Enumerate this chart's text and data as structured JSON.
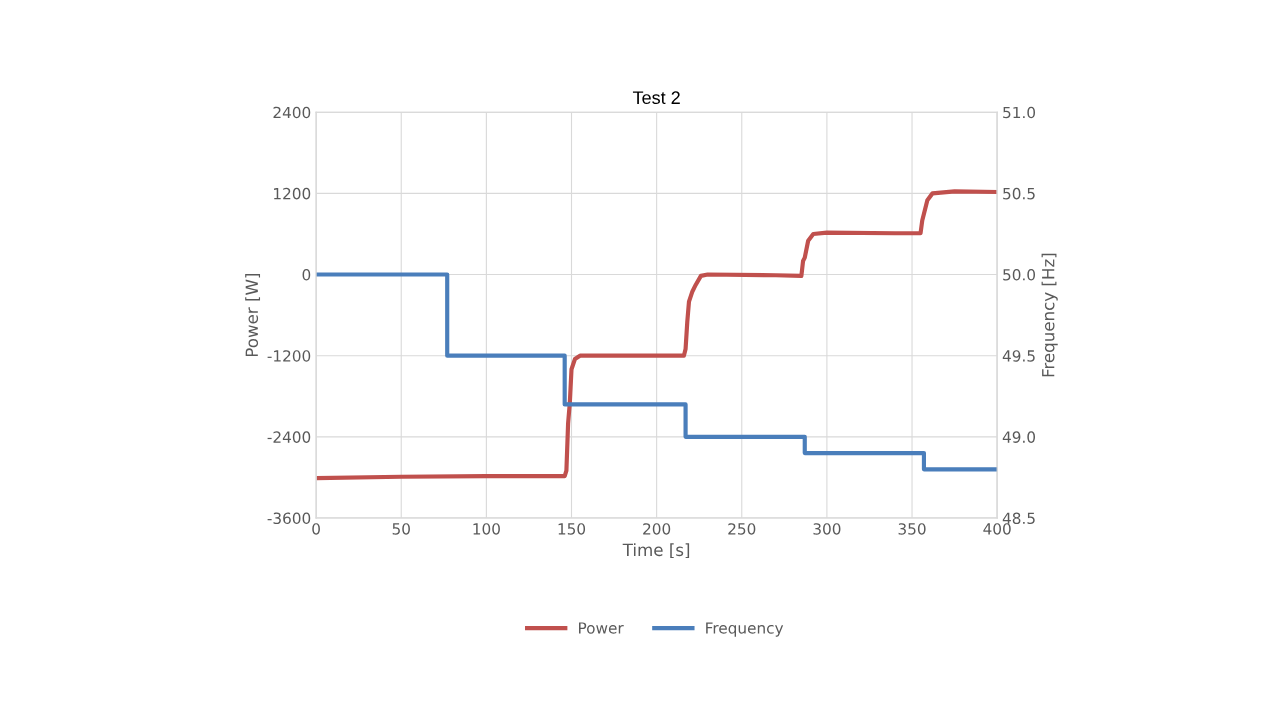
{
  "chart_data": {
    "type": "line",
    "title": "Test 2",
    "xlabel": "Time [s]",
    "ylabel": "Power [W]",
    "y2label": "Frequency [Hz]",
    "xlim": [
      0,
      400
    ],
    "xticks": [
      0,
      50,
      100,
      150,
      200,
      250,
      300,
      350,
      400
    ],
    "ylim": [
      -3600,
      2400
    ],
    "yticks": [
      -3600,
      -2400,
      -1200,
      0,
      1200,
      2400
    ],
    "y2lim": [
      48.5,
      51.0
    ],
    "y2ticks": [
      {
        "value": 48.5,
        "label": "48.5"
      },
      {
        "value": 49.0,
        "label": "49.0"
      },
      {
        "value": 49.5,
        "label": "49.5"
      },
      {
        "value": 50.0,
        "label": "50.0"
      },
      {
        "value": 50.5,
        "label": "50.5"
      },
      {
        "value": 51.0,
        "label": "51.0"
      }
    ],
    "grid": true,
    "legend": "bottom",
    "marker": "none",
    "line_style": "solid",
    "series": [
      {
        "name": "Power",
        "color": "#c0504d",
        "x": [
          0,
          50,
          100,
          146,
          147,
          148,
          149,
          150,
          152,
          155,
          200,
          216,
          217,
          218,
          219,
          221,
          223,
          226,
          230,
          270,
          285,
          286,
          287,
          289,
          292,
          300,
          340,
          355,
          356,
          357,
          359,
          362,
          375,
          400
        ],
        "values": [
          -3010,
          -2990,
          -2980,
          -2980,
          -2900,
          -2200,
          -1900,
          -1400,
          -1250,
          -1200,
          -1200,
          -1200,
          -1100,
          -700,
          -400,
          -250,
          -150,
          -20,
          0,
          -10,
          -20,
          200,
          250,
          500,
          600,
          620,
          610,
          610,
          800,
          900,
          1100,
          1200,
          1230,
          1220
        ]
      },
      {
        "name": "Frequency",
        "color": "#4a7ebb",
        "axis": "y2",
        "x": [
          0,
          77,
          77,
          146,
          146,
          217,
          217,
          287,
          287,
          357,
          357,
          400
        ],
        "values": [
          50.0,
          50.0,
          49.5,
          49.5,
          49.2,
          49.2,
          49.0,
          49.0,
          48.9,
          48.9,
          48.8,
          48.8
        ]
      }
    ]
  }
}
